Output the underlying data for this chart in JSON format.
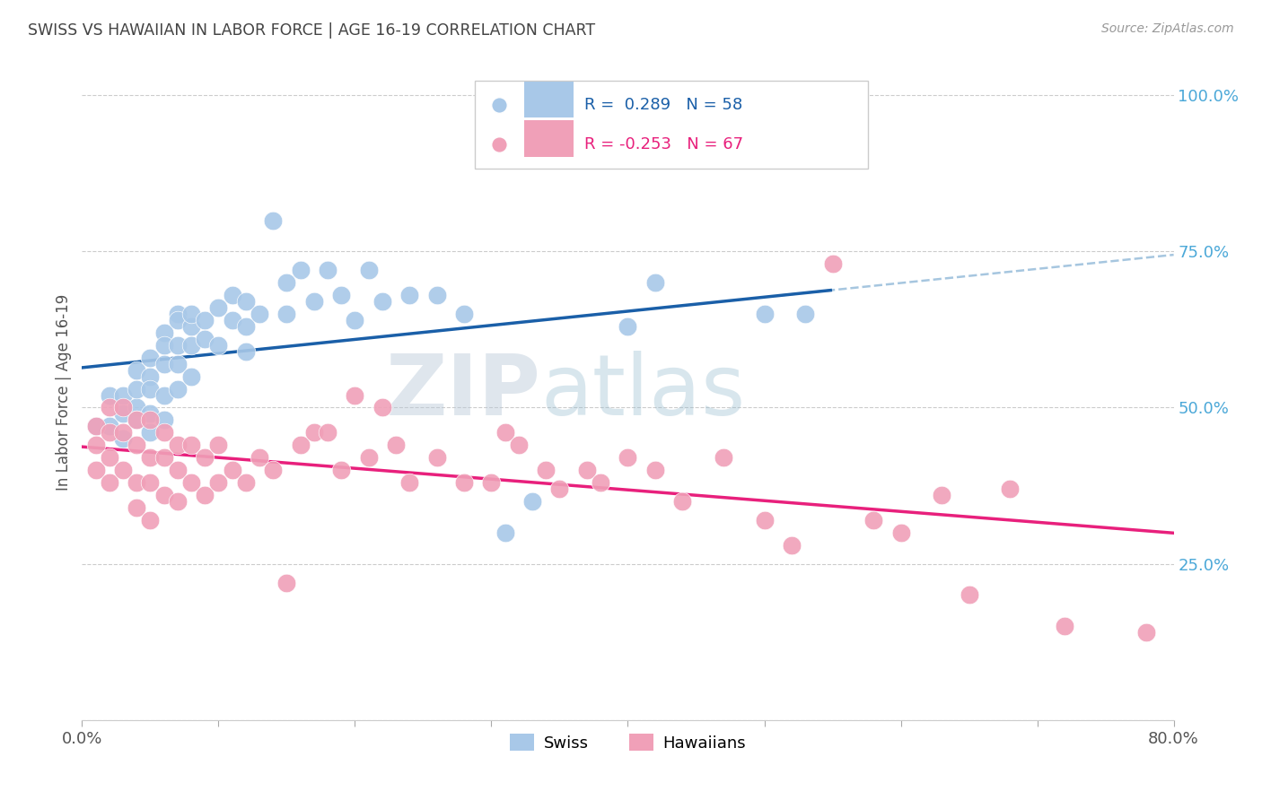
{
  "title": "SWISS VS HAWAIIAN IN LABOR FORCE | AGE 16-19 CORRELATION CHART",
  "source": "Source: ZipAtlas.com",
  "ylabel": "In Labor Force | Age 16-19",
  "xlim": [
    0.0,
    0.8
  ],
  "ylim": [
    0.0,
    1.05
  ],
  "xtick_positions": [
    0.0,
    0.1,
    0.2,
    0.3,
    0.4,
    0.5,
    0.6,
    0.7,
    0.8
  ],
  "xticklabels": [
    "0.0%",
    "",
    "",
    "",
    "",
    "",
    "",
    "",
    "80.0%"
  ],
  "ytick_positions": [
    0.0,
    0.25,
    0.5,
    0.75,
    1.0
  ],
  "ytick_labels": [
    "",
    "25.0%",
    "50.0%",
    "75.0%",
    "100.0%"
  ],
  "swiss_color": "#A8C8E8",
  "hawaiian_color": "#F0A0B8",
  "swiss_line_color": "#1A5FA8",
  "hawaiian_line_color": "#E8207C",
  "dashed_line_color": "#90B8D8",
  "legend_swiss_label": "R =  0.289   N = 58",
  "legend_hawaiian_label": "R = -0.253   N = 67",
  "bottom_legend_swiss": "Swiss",
  "bottom_legend_hawaiian": "Hawaiians",
  "watermark_zip": "ZIP",
  "watermark_atlas": "atlas",
  "swiss_x": [
    0.01,
    0.02,
    0.02,
    0.03,
    0.03,
    0.03,
    0.04,
    0.04,
    0.04,
    0.04,
    0.05,
    0.05,
    0.05,
    0.05,
    0.05,
    0.06,
    0.06,
    0.06,
    0.06,
    0.06,
    0.07,
    0.07,
    0.07,
    0.07,
    0.07,
    0.08,
    0.08,
    0.08,
    0.08,
    0.09,
    0.09,
    0.1,
    0.1,
    0.11,
    0.11,
    0.12,
    0.12,
    0.12,
    0.13,
    0.14,
    0.15,
    0.15,
    0.16,
    0.17,
    0.18,
    0.19,
    0.2,
    0.21,
    0.22,
    0.24,
    0.26,
    0.28,
    0.31,
    0.33,
    0.4,
    0.42,
    0.5,
    0.53
  ],
  "swiss_y": [
    0.47,
    0.52,
    0.47,
    0.52,
    0.49,
    0.45,
    0.5,
    0.53,
    0.56,
    0.48,
    0.55,
    0.58,
    0.53,
    0.46,
    0.49,
    0.62,
    0.6,
    0.57,
    0.52,
    0.48,
    0.65,
    0.64,
    0.6,
    0.57,
    0.53,
    0.63,
    0.65,
    0.6,
    0.55,
    0.64,
    0.61,
    0.66,
    0.6,
    0.68,
    0.64,
    0.67,
    0.63,
    0.59,
    0.65,
    0.8,
    0.7,
    0.65,
    0.72,
    0.67,
    0.72,
    0.68,
    0.64,
    0.72,
    0.67,
    0.68,
    0.68,
    0.65,
    0.3,
    0.35,
    0.63,
    0.7,
    0.65,
    0.65
  ],
  "hawaiian_x": [
    0.01,
    0.01,
    0.01,
    0.02,
    0.02,
    0.02,
    0.02,
    0.03,
    0.03,
    0.03,
    0.04,
    0.04,
    0.04,
    0.04,
    0.05,
    0.05,
    0.05,
    0.05,
    0.06,
    0.06,
    0.06,
    0.07,
    0.07,
    0.07,
    0.08,
    0.08,
    0.09,
    0.09,
    0.1,
    0.1,
    0.11,
    0.12,
    0.13,
    0.14,
    0.15,
    0.16,
    0.17,
    0.18,
    0.19,
    0.2,
    0.21,
    0.22,
    0.23,
    0.24,
    0.26,
    0.28,
    0.3,
    0.31,
    0.32,
    0.34,
    0.35,
    0.37,
    0.38,
    0.4,
    0.42,
    0.44,
    0.47,
    0.5,
    0.52,
    0.55,
    0.58,
    0.6,
    0.63,
    0.65,
    0.68,
    0.72,
    0.78
  ],
  "hawaiian_y": [
    0.47,
    0.44,
    0.4,
    0.5,
    0.46,
    0.42,
    0.38,
    0.5,
    0.46,
    0.4,
    0.48,
    0.44,
    0.38,
    0.34,
    0.48,
    0.42,
    0.38,
    0.32,
    0.46,
    0.42,
    0.36,
    0.44,
    0.4,
    0.35,
    0.44,
    0.38,
    0.42,
    0.36,
    0.44,
    0.38,
    0.4,
    0.38,
    0.42,
    0.4,
    0.22,
    0.44,
    0.46,
    0.46,
    0.4,
    0.52,
    0.42,
    0.5,
    0.44,
    0.38,
    0.42,
    0.38,
    0.38,
    0.46,
    0.44,
    0.4,
    0.37,
    0.4,
    0.38,
    0.42,
    0.4,
    0.35,
    0.42,
    0.32,
    0.28,
    0.73,
    0.32,
    0.3,
    0.36,
    0.2,
    0.37,
    0.15,
    0.14
  ]
}
